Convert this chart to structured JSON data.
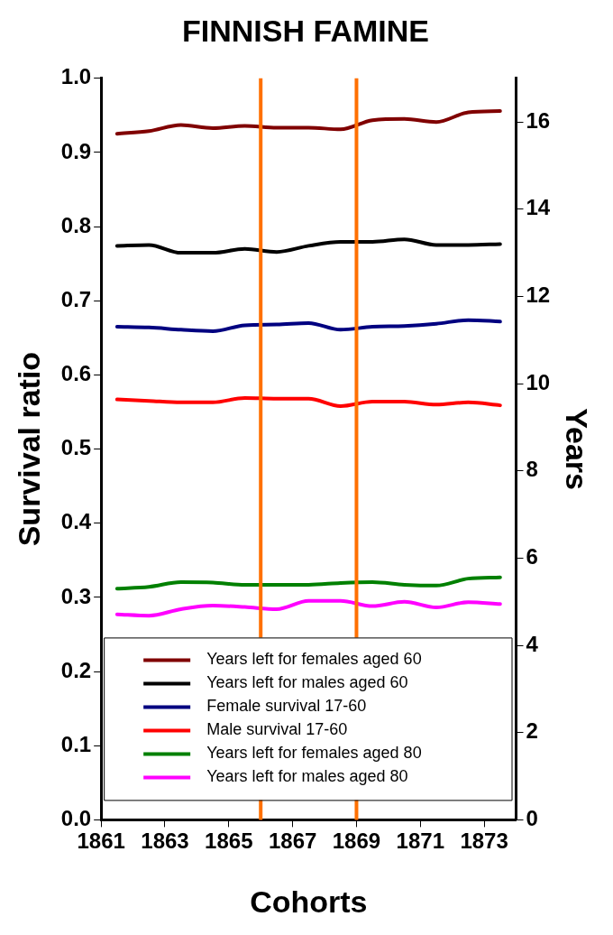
{
  "chart_data": {
    "type": "line",
    "title": "FINNISH FAMINE",
    "xlabel": "Cohorts",
    "ylabel": "Survival ratio",
    "y2label": "Years",
    "x": [
      1861.5,
      1862.5,
      1863.5,
      1864.5,
      1865.5,
      1866.5,
      1867.5,
      1868.5,
      1869.5,
      1870.5,
      1871.5,
      1872.5,
      1873.5
    ],
    "series": [
      {
        "name": "Years left for females aged 60",
        "color": "#800000",
        "axis": "y2",
        "values": [
          15.73,
          15.79,
          15.93,
          15.86,
          15.91,
          15.87,
          15.87,
          15.83,
          16.04,
          16.07,
          16.0,
          16.22,
          16.25
        ]
      },
      {
        "name": "Years left for males aged 60",
        "color": "#000000",
        "axis": "y2",
        "values": [
          13.16,
          13.18,
          13.0,
          13.0,
          13.09,
          13.02,
          13.16,
          13.25,
          13.25,
          13.31,
          13.18,
          13.18,
          13.2
        ]
      },
      {
        "name": "Female survival 17-60",
        "color": "#000080",
        "values": [
          0.665,
          0.664,
          0.661,
          0.659,
          0.667,
          0.668,
          0.67,
          0.661,
          0.665,
          0.666,
          0.669,
          0.674,
          0.672
        ]
      },
      {
        "name": "Male survival 17-60",
        "color": "#ff0000",
        "values": [
          0.567,
          0.565,
          0.563,
          0.563,
          0.569,
          0.568,
          0.568,
          0.558,
          0.564,
          0.564,
          0.56,
          0.563,
          0.559
        ]
      },
      {
        "name": "Years left for females aged 80",
        "color": "#008000",
        "axis": "y2",
        "values": [
          5.3,
          5.34,
          5.45,
          5.44,
          5.39,
          5.39,
          5.39,
          5.43,
          5.45,
          5.39,
          5.37,
          5.53,
          5.56
        ]
      },
      {
        "name": "Years left for males aged 80",
        "color": "#ff00ff",
        "axis": "y2",
        "values": [
          4.71,
          4.68,
          4.83,
          4.91,
          4.88,
          4.83,
          5.02,
          5.02,
          4.9,
          5.0,
          4.87,
          4.99,
          4.95
        ]
      }
    ],
    "xlim": [
      1861,
      1874
    ],
    "xticks": [
      1861,
      1863,
      1865,
      1867,
      1869,
      1871,
      1873
    ],
    "ylim": [
      0,
      1
    ],
    "yticks": [
      {
        "value": 0,
        "label": "0.0"
      },
      0.1,
      0.2,
      0.3,
      0.4,
      0.5,
      0.6,
      0.7,
      0.8,
      0.9,
      {
        "value": 1,
        "label": "1.0"
      }
    ],
    "y2lim": [
      0,
      17
    ],
    "y2ticks": [
      0,
      2,
      4,
      6,
      8,
      10,
      12,
      14,
      16
    ],
    "ref_lines": [
      {
        "axis": "x",
        "value": 1866,
        "color": "#ff7000"
      },
      {
        "axis": "x",
        "value": 1869,
        "color": "#ff7000"
      }
    ],
    "grid": false,
    "legend": "bottom",
    "marker": "none",
    "line_style": "solid"
  }
}
